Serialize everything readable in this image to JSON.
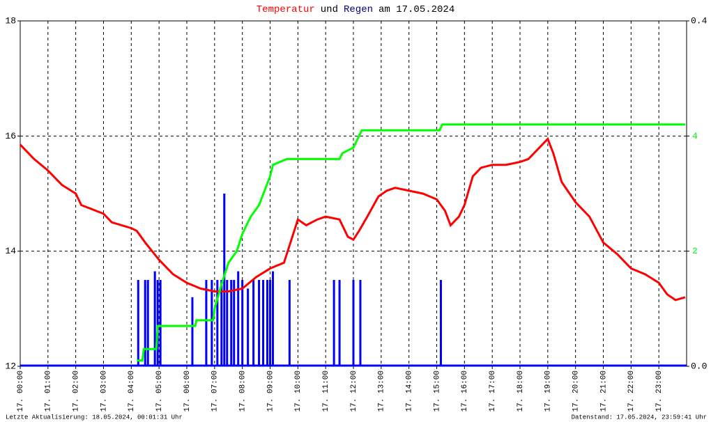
{
  "chart_data": {
    "type": "line",
    "title_parts": [
      "Temperatur",
      "und",
      "Regen",
      "am 17.05.2024"
    ],
    "title_colors": [
      "#ff0000",
      "#000000",
      "#000080",
      "#000000"
    ],
    "footer_left": "Letzte Aktualisierung: 18.05.2024, 00:01:31 Uhr",
    "footer_right": "Datenstand: 17.05.2024, 23:59:41 Uhr",
    "xlim": [
      0,
      24
    ],
    "xticks": [
      {
        "value": 0,
        "label": "17. 00:00"
      },
      {
        "value": 1,
        "label": "17. 01:00"
      },
      {
        "value": 2,
        "label": "17. 02:00"
      },
      {
        "value": 3,
        "label": "17. 03:00"
      },
      {
        "value": 4,
        "label": "17. 04:00"
      },
      {
        "value": 5,
        "label": "17. 05:00"
      },
      {
        "value": 6,
        "label": "17. 06:00"
      },
      {
        "value": 7,
        "label": "17. 07:00"
      },
      {
        "value": 8,
        "label": "17. 08:00"
      },
      {
        "value": 9,
        "label": "17. 09:00"
      },
      {
        "value": 10,
        "label": "17. 10:00"
      },
      {
        "value": 11,
        "label": "17. 11:00"
      },
      {
        "value": 12,
        "label": "17. 12:00"
      },
      {
        "value": 13,
        "label": "17. 13:00"
      },
      {
        "value": 14,
        "label": "17. 14:00"
      },
      {
        "value": 15,
        "label": "17. 15:00"
      },
      {
        "value": 16,
        "label": "17. 16:00"
      },
      {
        "value": 17,
        "label": "17. 17:00"
      },
      {
        "value": 18,
        "label": "17. 18:00"
      },
      {
        "value": 19,
        "label": "17. 19:00"
      },
      {
        "value": 20,
        "label": "17. 20:00"
      },
      {
        "value": 21,
        "label": "17. 21:00"
      },
      {
        "value": 22,
        "label": "17. 22:00"
      },
      {
        "value": 23,
        "label": "17. 23:00"
      }
    ],
    "ylim": [
      12,
      18
    ],
    "yticks": [
      12,
      14,
      16,
      18
    ],
    "y2lim": [
      0,
      6
    ],
    "y2ticks": [
      2,
      4
    ],
    "y3lim": [
      0,
      0.4
    ],
    "y3ticks": [
      {
        "value": 0,
        "label": "0.0"
      },
      {
        "value": 0.4,
        "label": "0.4"
      }
    ],
    "grid": true,
    "series": [
      {
        "color": "#ff0000",
        "x": [
          0,
          0.5,
          1,
          1.5,
          2,
          2.2,
          3,
          3.3,
          4,
          4.2,
          4.5,
          5,
          5.5,
          6,
          6.5,
          7,
          7.5,
          8,
          8.5,
          9,
          9.5,
          9.7,
          10,
          10.3,
          10.7,
          11,
          11.5,
          11.8,
          12,
          12.2,
          12.5,
          12.9,
          13.2,
          13.5,
          14,
          14.5,
          15,
          15.3,
          15.5,
          15.8,
          16,
          16.3,
          16.6,
          17,
          17.5,
          18,
          18.3,
          18.7,
          19,
          19.2,
          19.5,
          20,
          20.5,
          21,
          21.5,
          22,
          22.5,
          23,
          23.3,
          23.6,
          23.95
        ],
        "values": [
          15.85,
          15.6,
          15.4,
          15.15,
          15.0,
          14.8,
          14.65,
          14.5,
          14.4,
          14.35,
          14.15,
          13.85,
          13.6,
          13.45,
          13.35,
          13.3,
          13.3,
          13.35,
          13.55,
          13.7,
          13.8,
          14.1,
          14.55,
          14.45,
          14.55,
          14.6,
          14.55,
          14.25,
          14.2,
          14.35,
          14.6,
          14.95,
          15.05,
          15.1,
          15.05,
          15.0,
          14.9,
          14.7,
          14.45,
          14.6,
          14.8,
          15.3,
          15.45,
          15.5,
          15.5,
          15.55,
          15.6,
          15.8,
          15.95,
          15.7,
          15.2,
          14.85,
          14.6,
          14.15,
          13.95,
          13.7,
          13.6,
          13.45,
          13.25,
          13.15,
          13.2
        ]
      },
      {
        "color": "#00ff00",
        "axis": "y2",
        "x": [
          4.2,
          4.4,
          4.45,
          4.9,
          4.95,
          6.3,
          6.35,
          6.95,
          7.0,
          7.3,
          7.5,
          7.8,
          8.0,
          8.3,
          8.6,
          9.0,
          9.1,
          9.6,
          11.5,
          11.6,
          12.0,
          12.3,
          15.1,
          15.2,
          23.95
        ],
        "values": [
          0.1,
          0.1,
          0.3,
          0.3,
          0.7,
          0.7,
          0.8,
          0.8,
          1.0,
          1.5,
          1.8,
          2.0,
          2.3,
          2.6,
          2.8,
          3.3,
          3.5,
          3.6,
          3.6,
          3.7,
          3.8,
          4.1,
          4.1,
          4.2,
          4.2
        ]
      },
      {
        "color": "#0000ff",
        "axis": "y3",
        "type": "bar",
        "x": [
          4.25,
          4.5,
          4.6,
          4.85,
          4.95,
          5.05,
          6.2,
          6.7,
          6.9,
          7.1,
          7.25,
          7.35,
          7.45,
          7.6,
          7.7,
          7.85,
          8.0,
          8.2,
          8.4,
          8.6,
          8.75,
          8.9,
          9.0,
          9.1,
          9.7,
          11.3,
          11.5,
          12.0,
          12.25,
          15.15
        ],
        "values": [
          0.1,
          0.1,
          0.1,
          0.11,
          0.1,
          0.1,
          0.08,
          0.1,
          0.1,
          0.1,
          0.1,
          0.2,
          0.1,
          0.1,
          0.1,
          0.11,
          0.1,
          0.09,
          0.1,
          0.1,
          0.1,
          0.1,
          0.1,
          0.11,
          0.1,
          0.1,
          0.1,
          0.1,
          0.1,
          0.1
        ]
      }
    ]
  }
}
